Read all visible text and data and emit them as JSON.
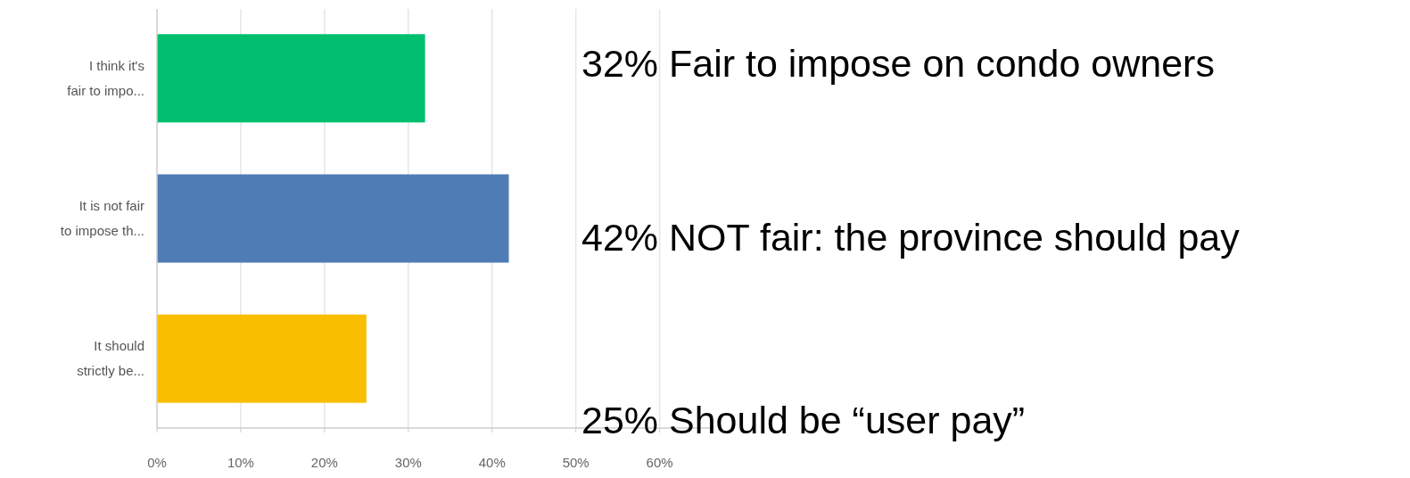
{
  "chart_data": {
    "type": "bar",
    "orientation": "horizontal",
    "categories": [
      "I think it's fair to impo...",
      "It is not fair to impose th...",
      "It should strictly be..."
    ],
    "values": [
      32,
      42,
      25
    ],
    "colors": [
      "#00bf6f",
      "#507cb6",
      "#f9be00"
    ],
    "xlim": [
      0,
      66
    ],
    "xticks": [
      {
        "value": 0,
        "label": "0%"
      },
      {
        "value": 10,
        "label": "10%"
      },
      {
        "value": 20,
        "label": "20%"
      },
      {
        "value": 30,
        "label": "30%"
      },
      {
        "value": 40,
        "label": "40%"
      },
      {
        "value": 50,
        "label": "50%"
      },
      {
        "value": 60,
        "label": "60%"
      }
    ],
    "grid": "x",
    "annotations": [
      "32% Fair to impose on condo owners",
      "42% NOT fair: the province should pay",
      "25% Should be “user pay”"
    ]
  }
}
